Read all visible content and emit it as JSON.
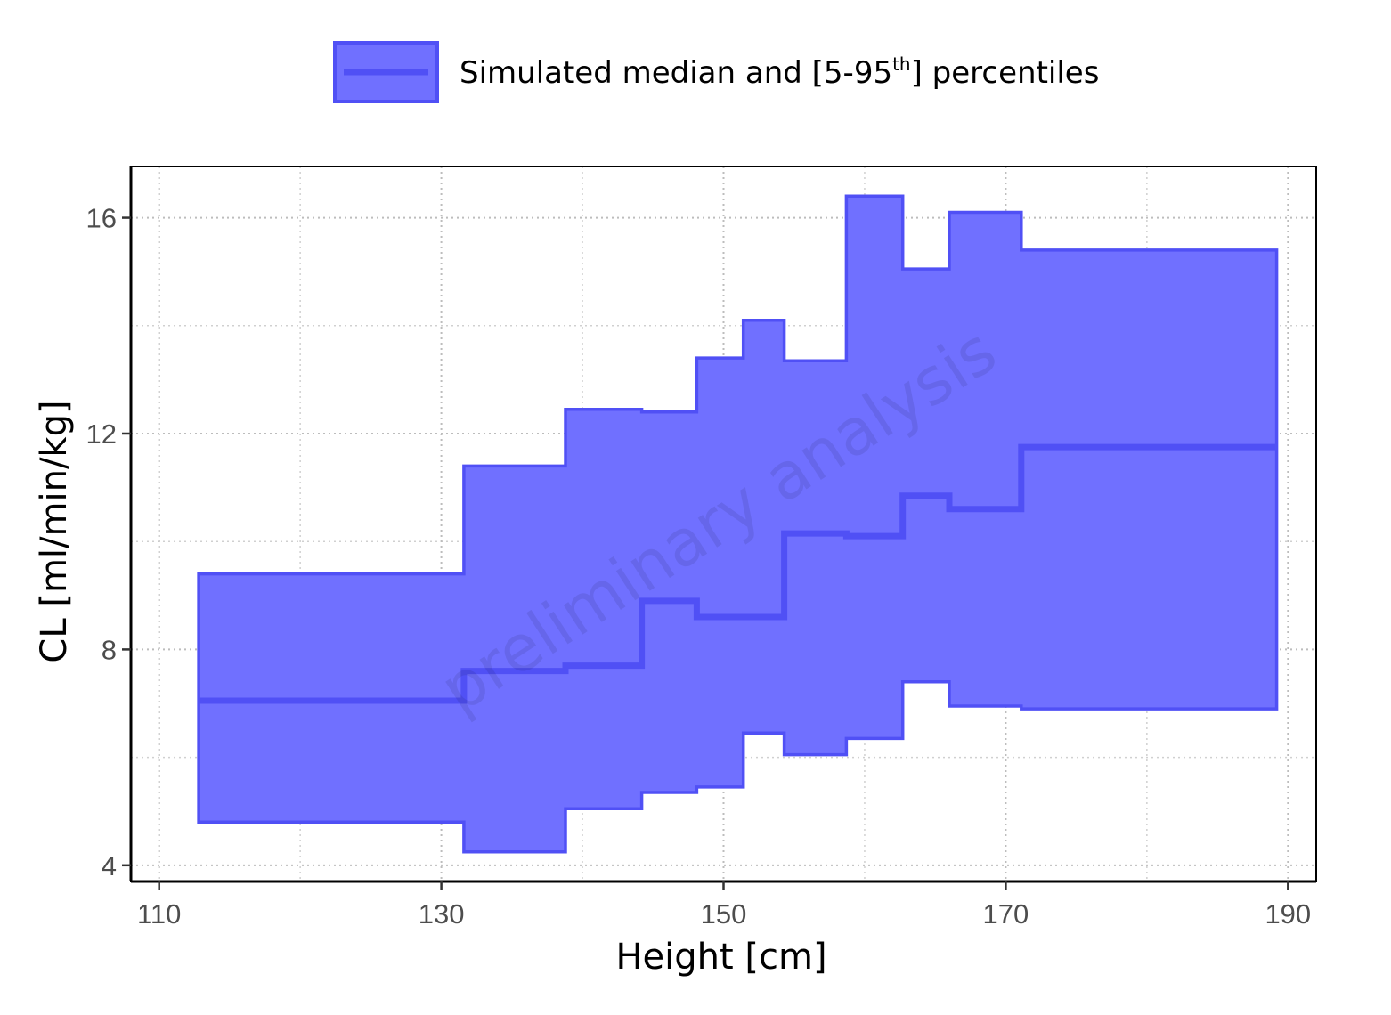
{
  "chart_data": {
    "type": "area",
    "title": "",
    "xlabel": "Height [cm]",
    "ylabel": "CL [ml/min/kg]",
    "xlim": [
      108,
      192
    ],
    "ylim": [
      3.7,
      16.95
    ],
    "x_ticks": [
      110,
      130,
      150,
      170,
      190
    ],
    "y_ticks": [
      4,
      8,
      12,
      16
    ],
    "grid": true,
    "legend_position": "top",
    "legend": {
      "label_pre": "Simulated median and [5-95",
      "label_sup": "th",
      "label_post": "] percentiles"
    },
    "watermark": "preliminary analysis",
    "colors": {
      "fill": "#7070ff",
      "line": "#5050f5"
    },
    "series": [
      {
        "name": "Simulated median and [5-95th] percentiles",
        "steps": [
          {
            "x0": 112.8,
            "x1": 131.6,
            "p5": 4.8,
            "median": 7.05,
            "p95": 9.4
          },
          {
            "x0": 131.6,
            "x1": 138.8,
            "p5": 4.25,
            "median": 7.6,
            "p95": 11.4
          },
          {
            "x0": 138.8,
            "x1": 144.2,
            "p5": 5.05,
            "median": 7.7,
            "p95": 12.45
          },
          {
            "x0": 144.2,
            "x1": 148.1,
            "p5": 5.35,
            "median": 8.9,
            "p95": 12.4
          },
          {
            "x0": 148.1,
            "x1": 151.4,
            "p5": 5.45,
            "median": 8.6,
            "p95": 13.4
          },
          {
            "x0": 151.4,
            "x1": 154.3,
            "p5": 6.45,
            "median": 8.6,
            "p95": 14.1
          },
          {
            "x0": 154.3,
            "x1": 158.7,
            "p5": 6.05,
            "median": 10.15,
            "p95": 13.35
          },
          {
            "x0": 158.7,
            "x1": 162.7,
            "p5": 6.35,
            "median": 10.1,
            "p95": 16.4
          },
          {
            "x0": 162.7,
            "x1": 166.0,
            "p5": 7.4,
            "median": 10.85,
            "p95": 15.05
          },
          {
            "x0": 166.0,
            "x1": 171.1,
            "p5": 6.95,
            "median": 10.6,
            "p95": 16.1
          },
          {
            "x0": 171.1,
            "x1": 189.2,
            "p5": 6.9,
            "median": 11.75,
            "p95": 15.4
          }
        ]
      }
    ]
  }
}
